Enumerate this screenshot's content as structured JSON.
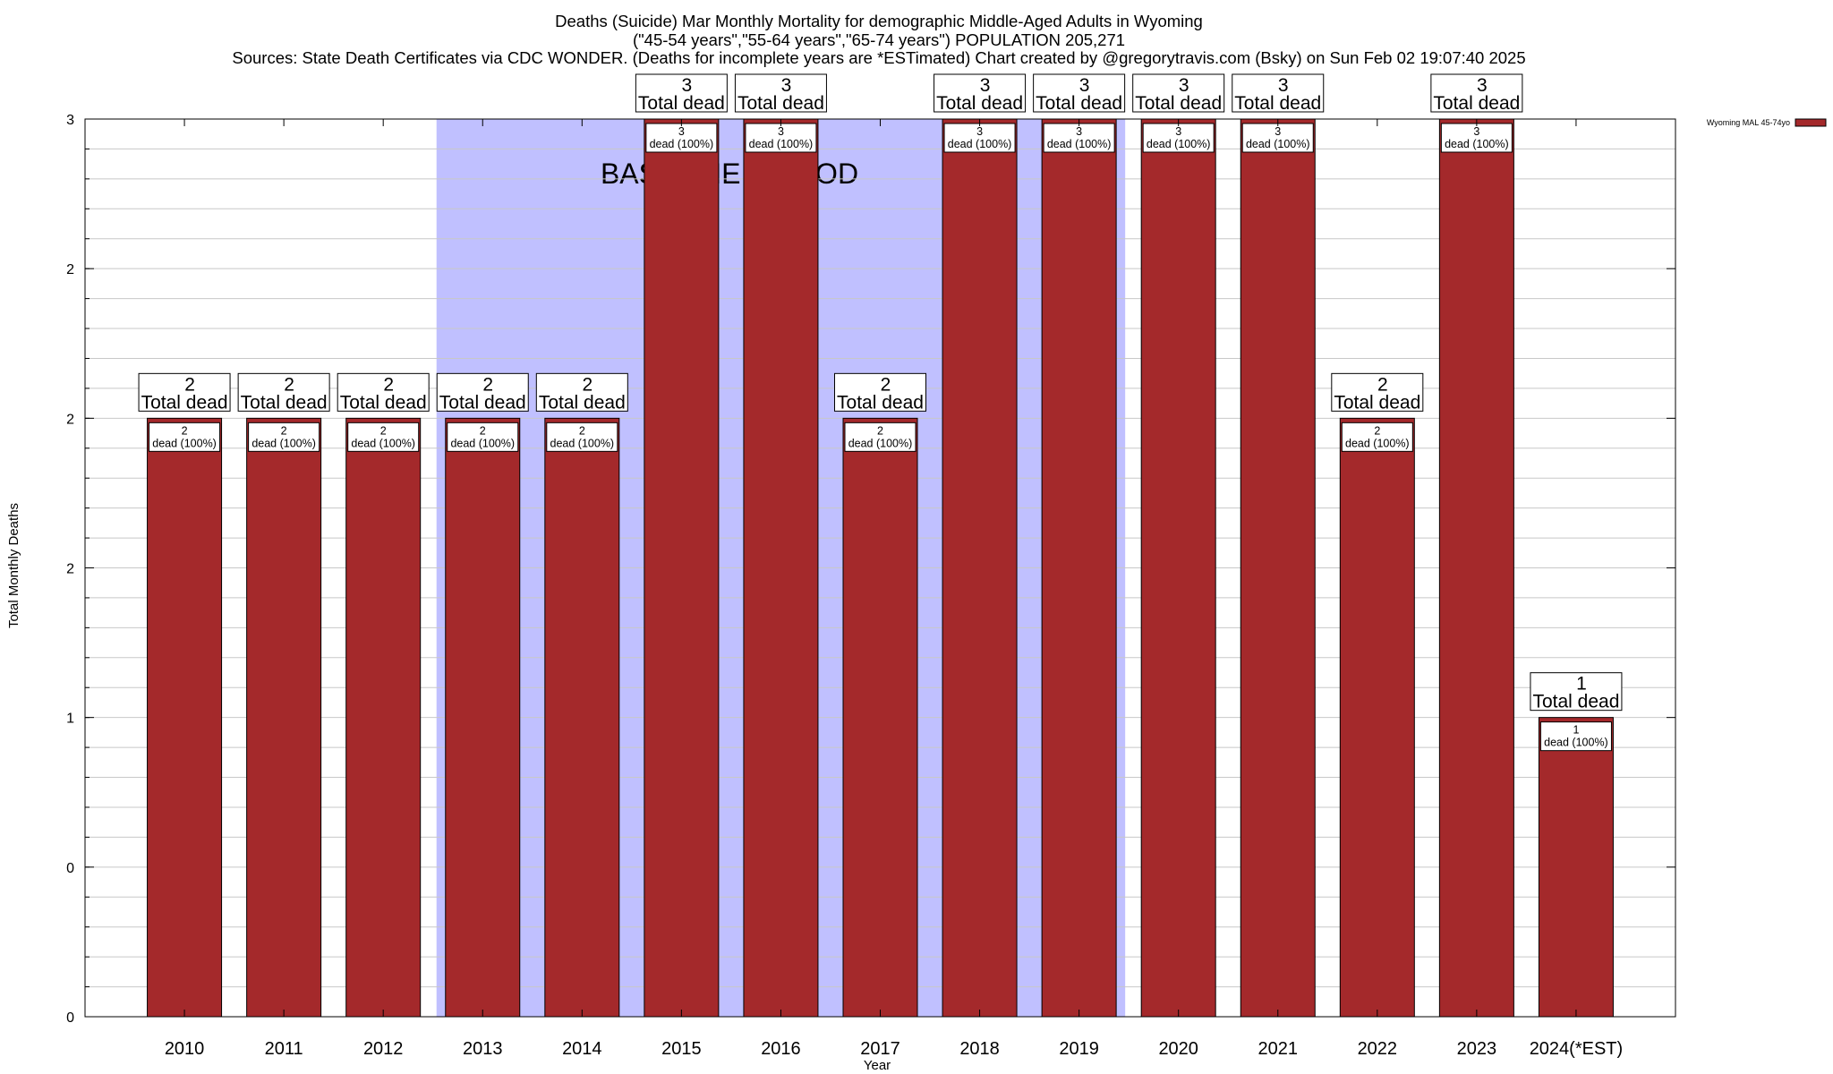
{
  "titles": [
    "Deaths (Suicide) Mar Monthly Mortality for demographic Middle-Aged Adults in Wyoming",
    "(\"45-54 years\",\"55-64 years\",\"65-74 years\") POPULATION 205,271",
    "Sources: State Death Certificates via CDC WONDER. (Deaths for incomplete years are *ESTimated)            Chart created by @gregorytravis.com (Bsky) on Sun Feb 02 19:07:40 2025"
  ],
  "colors": {
    "bar": "#a4292b",
    "baseline": "#c0c0ff",
    "grid": "#c8c8c8"
  },
  "chart_data": {
    "type": "bar",
    "xlabel": "Year",
    "ylabel": "Total Monthly Deaths",
    "ylim": [
      0,
      3
    ],
    "grid": true,
    "legend_position": "top-right",
    "categories": [
      "2010",
      "2011",
      "2012",
      "2013",
      "2014",
      "2015",
      "2016",
      "2017",
      "2018",
      "2019",
      "2020",
      "2021",
      "2022",
      "2023",
      "2024(*EST)"
    ],
    "series": [
      {
        "name": "Wyoming MAL 45-74yo",
        "values": [
          2,
          2,
          2,
          2,
          2,
          3,
          3,
          2,
          3,
          3,
          3,
          3,
          2,
          3,
          1
        ]
      }
    ],
    "total_labels": [
      "2",
      "2",
      "2",
      "2",
      "2",
      "3",
      "3",
      "2",
      "3",
      "3",
      "3",
      "3",
      "2",
      "3",
      "1"
    ],
    "total_suffix": "Total dead",
    "inner_labels": [
      "2",
      "2",
      "2",
      "2",
      "2",
      "3",
      "3",
      "2",
      "3",
      "3",
      "3",
      "3",
      "2",
      "3",
      "1"
    ],
    "inner_suffix": "dead (100%)",
    "y_ticks": [
      {
        "value": 0,
        "label": "0"
      },
      {
        "value": 0.5,
        "label": "0"
      },
      {
        "value": 1,
        "label": "1"
      },
      {
        "value": 1.5,
        "label": "2"
      },
      {
        "value": 2,
        "label": "2"
      },
      {
        "value": 2.5,
        "label": "2"
      },
      {
        "value": 3,
        "label": "3"
      }
    ],
    "minor_y_step": 0.1,
    "baseline_period": {
      "label": "BASELINE PERIOD",
      "from_year": 2012.5,
      "to_year": 2019.5
    }
  }
}
